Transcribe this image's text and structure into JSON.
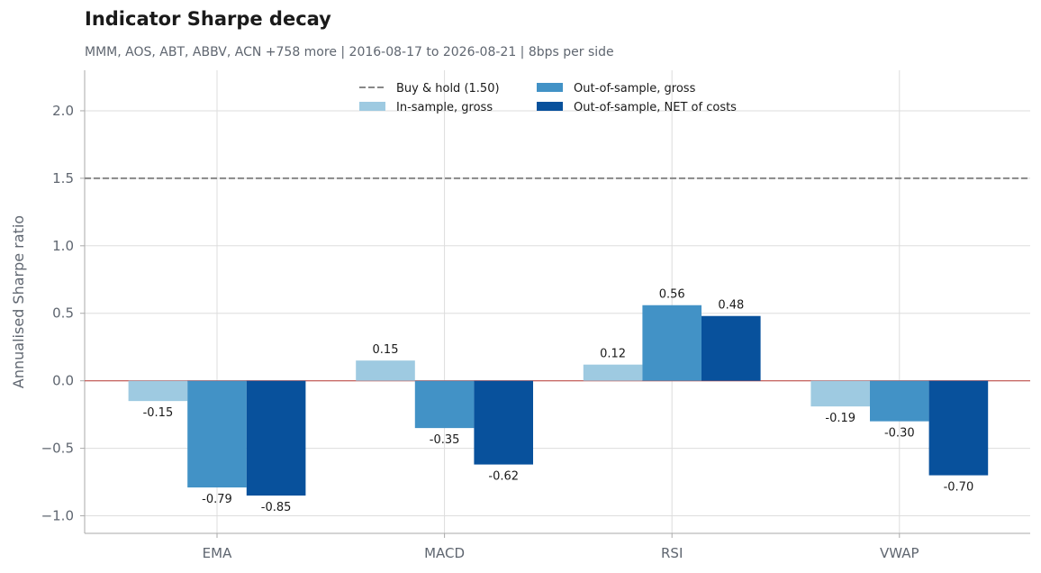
{
  "header": {
    "title": "Indicator Sharpe decay",
    "subtitle": "MMM, AOS, ABT, ABBV, ACN +758 more | 2016-08-17 to 2026-08-21 | 8bps per side"
  },
  "chart_data": {
    "type": "bar",
    "categories": [
      "EMA",
      "MACD",
      "RSI",
      "VWAP"
    ],
    "series": [
      {
        "name": "In-sample, gross",
        "values": [
          -0.15,
          0.15,
          0.12,
          -0.19
        ],
        "labels": [
          "-0.15",
          "0.15",
          "0.12",
          "-0.19"
        ],
        "color": "#9ecae1"
      },
      {
        "name": "Out-of-sample, gross",
        "values": [
          -0.79,
          -0.35,
          0.56,
          -0.3
        ],
        "labels": [
          "-0.79",
          "-0.35",
          "0.56",
          "-0.30"
        ],
        "color": "#4292c6"
      },
      {
        "name": "Out-of-sample, NET of costs",
        "values": [
          -0.85,
          -0.62,
          0.48,
          -0.7
        ],
        "labels": [
          "-0.85",
          "-0.62",
          "0.48",
          "-0.70"
        ],
        "color": "#08519c"
      }
    ],
    "reference_line": {
      "name": "Buy & hold (1.50)",
      "value": 1.5,
      "color": "#888888",
      "style": "dashed"
    },
    "zero_line_color": "#c0504d",
    "ylabel": "Annualised Sharpe ratio",
    "xlabel": "",
    "ylim": [
      -1.13,
      2.3
    ],
    "yticks": [
      -1.0,
      -0.5,
      0.0,
      0.5,
      1.0,
      1.5,
      2.0
    ],
    "ytick_labels": [
      "−1.0",
      "−0.5",
      "0.0",
      "0.5",
      "1.0",
      "1.5",
      "2.0"
    ],
    "grid": true,
    "legend_position": "top-center"
  }
}
